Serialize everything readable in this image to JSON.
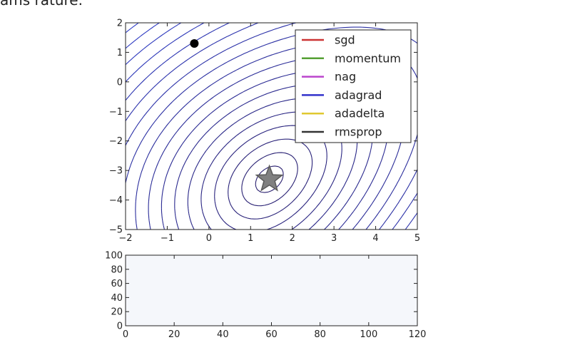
{
  "caption_fragment": "ams rature.",
  "colors": {
    "sgd": "#cc3333",
    "momentum": "#55a033",
    "nag": "#bb44cc",
    "adagrad": "#3333cc",
    "adadelta": "#e0c830",
    "rmsprop": "#333333",
    "marker_dot": "#000000",
    "star": "#808080"
  },
  "chart_data": [
    {
      "type": "contour",
      "xlim": [
        -2,
        5
      ],
      "ylim": [
        -5,
        2
      ],
      "xticks": [
        "−2",
        "−1",
        "0",
        "1",
        "2",
        "3",
        "4",
        "5"
      ],
      "yticks": [
        "2",
        "1",
        "0",
        "−1",
        "−2",
        "−3",
        "−4",
        "−5"
      ],
      "grid": false,
      "legend_position": "top-right",
      "legend": [
        {
          "name": "sgd",
          "color": "#cc3333"
        },
        {
          "name": "momentum",
          "color": "#55a033"
        },
        {
          "name": "nag",
          "color": "#bb44cc"
        },
        {
          "name": "adagrad",
          "color": "#3333cc"
        },
        {
          "name": "adadelta",
          "color": "#e0c830"
        },
        {
          "name": "rmsprop",
          "color": "#333333"
        }
      ],
      "minimum_star": {
        "x": 1.45,
        "y": -3.3
      },
      "start_point": {
        "x": -0.35,
        "y": 1.3
      }
    },
    {
      "type": "line",
      "xlim": [
        0,
        120
      ],
      "ylim": [
        0,
        100
      ],
      "xticks": [
        "0",
        "20",
        "40",
        "60",
        "80",
        "100",
        "120"
      ],
      "yticks": [
        "100",
        "80",
        "60",
        "40",
        "20",
        "0"
      ],
      "series": []
    }
  ]
}
